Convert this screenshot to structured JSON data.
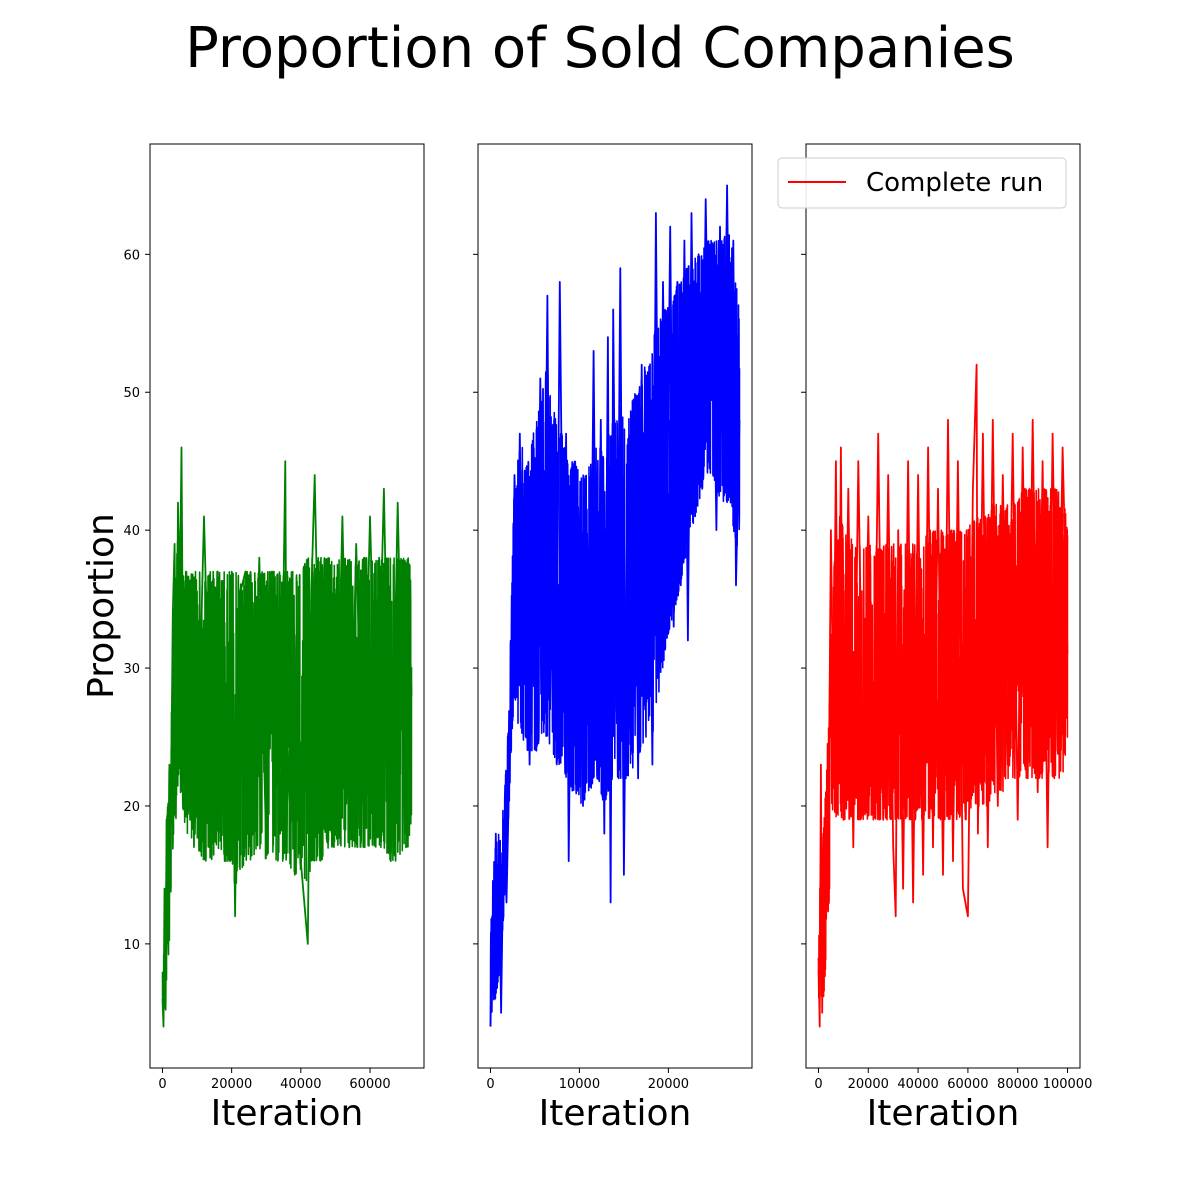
{
  "figure": {
    "title": "Proportion of Sold Companies"
  },
  "chart_data": [
    {
      "type": "line",
      "xlabel": "Iteration",
      "ylabel": "Proportion",
      "xlim": [
        -3600,
        75600
      ],
      "ylim": [
        1,
        68
      ],
      "xticks": [
        0,
        20000,
        40000,
        60000
      ],
      "xtick_labels": [
        "0",
        "20000",
        "40000",
        "60000"
      ],
      "yticks": [
        10,
        20,
        30,
        40,
        50,
        60
      ],
      "ytick_labels": [
        "10",
        "20",
        "30",
        "40",
        "50",
        "60"
      ],
      "grid": false,
      "series": [
        {
          "color": "#008000",
          "x": [
            0,
            300,
            600,
            900,
            1200,
            1500,
            2000,
            2500,
            3000,
            3500,
            4000,
            4500,
            5000,
            5500,
            6000,
            7000,
            8000,
            9000,
            10000,
            12000,
            14000,
            16000,
            18000,
            20000,
            21000,
            22000,
            24000,
            26000,
            28000,
            30000,
            32000,
            34000,
            35500,
            36000,
            38000,
            40000,
            42000,
            43000,
            44000,
            46000,
            48000,
            50000,
            52000,
            54000,
            56000,
            58000,
            60000,
            62000,
            64000,
            66000,
            68000,
            70000,
            71000,
            72000
          ],
          "y": [
            6,
            4,
            14,
            8,
            19,
            10,
            23,
            21,
            34,
            39,
            24,
            42,
            35,
            46,
            27,
            36,
            19,
            35,
            21,
            41,
            22,
            37,
            16,
            34,
            12,
            35,
            37,
            19,
            38,
            17,
            36,
            18,
            45,
            20,
            33,
            16,
            10,
            35,
            44,
            18,
            37,
            19,
            41,
            17,
            39,
            20,
            41,
            22,
            43,
            16,
            42,
            18,
            37,
            28
          ],
          "band_low": [
            4,
            4,
            5,
            5,
            7,
            8,
            10,
            14,
            17,
            19,
            19,
            20,
            20,
            21,
            18,
            18,
            18,
            17,
            17,
            16,
            16,
            17,
            16,
            16,
            14,
            15,
            16,
            16,
            17,
            16,
            16,
            16,
            16,
            16,
            15,
            15,
            14,
            16,
            16,
            16,
            17,
            17,
            17,
            17,
            17,
            17,
            17,
            17,
            17,
            16,
            16,
            17,
            17,
            19
          ],
          "band_high": [
            8,
            8,
            14,
            14,
            19,
            20,
            23,
            25,
            33,
            36,
            37,
            40,
            40,
            39,
            37,
            37,
            37,
            37,
            37,
            37,
            37,
            37,
            37,
            37,
            37,
            37,
            37,
            37,
            37,
            37,
            37,
            37,
            37,
            37,
            37,
            37,
            38,
            38,
            38,
            38,
            38,
            38,
            38,
            38,
            38,
            38,
            38,
            38,
            38,
            38,
            38,
            38,
            38,
            37
          ]
        }
      ]
    },
    {
      "type": "line",
      "xlabel": "Iteration",
      "xlim": [
        -1400,
        29400
      ],
      "ylim": [
        1,
        68
      ],
      "xticks": [
        0,
        10000,
        20000
      ],
      "xtick_labels": [
        "0",
        "10000",
        "20000"
      ],
      "yticks": [
        10,
        20,
        30,
        40,
        50,
        60
      ],
      "grid": false,
      "series": [
        {
          "color": "#0000ff",
          "x": [
            0,
            200,
            400,
            600,
            800,
            1000,
            1200,
            1500,
            1800,
            2100,
            2400,
            2700,
            3000,
            3300,
            3600,
            4000,
            4400,
            4800,
            5200,
            5600,
            6000,
            6400,
            6700,
            7000,
            7400,
            7800,
            8200,
            8500,
            8800,
            9200,
            9600,
            10000,
            10400,
            10800,
            11200,
            11600,
            12000,
            12400,
            12800,
            13200,
            13500,
            13800,
            14200,
            14600,
            15000,
            15400,
            15800,
            16200,
            16600,
            17000,
            17400,
            17800,
            18200,
            18600,
            19000,
            19400,
            19800,
            20200,
            20600,
            21000,
            21400,
            21800,
            22200,
            22600,
            23000,
            23400,
            23800,
            24200,
            24600,
            25000,
            25400,
            25800,
            26200,
            26600,
            27000,
            27300,
            27600,
            28000
          ],
          "y": [
            4,
            12,
            6,
            18,
            8,
            14,
            5,
            19,
            13,
            22,
            28,
            44,
            30,
            47,
            33,
            42,
            23,
            46,
            28,
            51,
            30,
            57,
            27,
            43,
            25,
            58,
            32,
            47,
            16,
            42,
            24,
            41,
            20,
            39,
            26,
            53,
            22,
            48,
            18,
            54,
            13,
            56,
            26,
            59,
            15,
            44,
            24,
            48,
            22,
            52,
            27,
            47,
            23,
            63,
            30,
            58,
            37,
            62,
            33,
            58,
            36,
            61,
            32,
            63,
            41,
            60,
            43,
            64,
            47,
            58,
            40,
            62,
            45,
            65,
            42,
            61,
            36,
            48
          ],
          "band_low": [
            4,
            5,
            6,
            6,
            7,
            8,
            7,
            12,
            15,
            20,
            25,
            28,
            26,
            26,
            25,
            24,
            24,
            24,
            24,
            25,
            25,
            25,
            24,
            24,
            23,
            23,
            23,
            22,
            20,
            21,
            21,
            20,
            20,
            21,
            21,
            22,
            22,
            21,
            20,
            21,
            21,
            22,
            22,
            22,
            22,
            22,
            22,
            23,
            23,
            24,
            25,
            25,
            25,
            27,
            28,
            30,
            32,
            33,
            34,
            35,
            36,
            38,
            38,
            40,
            41,
            42,
            43,
            44,
            44,
            44,
            43,
            42,
            42,
            42,
            42,
            40,
            38,
            40
          ],
          "band_high": [
            12,
            14,
            16,
            18,
            18,
            18,
            17,
            21,
            23,
            28,
            36,
            44,
            45,
            46,
            46,
            45,
            45,
            47,
            48,
            50,
            51,
            52,
            50,
            49,
            48,
            47,
            47,
            46,
            44,
            45,
            45,
            44,
            44,
            44,
            45,
            46,
            46,
            46,
            45,
            47,
            47,
            48,
            48,
            49,
            48,
            48,
            49,
            50,
            50,
            51,
            52,
            52,
            53,
            55,
            55,
            56,
            56,
            57,
            57,
            58,
            58,
            59,
            59,
            60,
            60,
            60,
            60,
            61,
            61,
            61,
            61,
            61,
            61,
            62,
            61,
            60,
            58,
            56
          ]
        }
      ]
    },
    {
      "type": "line",
      "xlabel": "Iteration",
      "xlim": [
        -5000,
        105000
      ],
      "ylim": [
        1,
        68
      ],
      "xticks": [
        0,
        20000,
        40000,
        60000,
        80000,
        100000
      ],
      "xtick_labels": [
        "0",
        "20000",
        "40000",
        "60000",
        "80000",
        "100000"
      ],
      "yticks": [
        10,
        20,
        30,
        40,
        50,
        60
      ],
      "grid": false,
      "legend": {
        "position": "top-right",
        "entries": [
          {
            "label": "Complete run",
            "color": "#ff0000"
          }
        ]
      },
      "series": [
        {
          "name": "Complete run",
          "color": "#ff0000",
          "x": [
            0,
            500,
            1000,
            1500,
            2000,
            2500,
            3000,
            4000,
            5000,
            6000,
            7000,
            8000,
            9000,
            10000,
            12000,
            14000,
            16000,
            18000,
            20000,
            22000,
            24000,
            26000,
            28000,
            30000,
            31000,
            32000,
            34000,
            36000,
            38000,
            40000,
            42000,
            44000,
            46000,
            48000,
            50000,
            52000,
            54000,
            56000,
            58000,
            60000,
            62000,
            63500,
            64000,
            66000,
            68000,
            70000,
            72000,
            74000,
            76000,
            78000,
            80000,
            82000,
            84000,
            86000,
            88000,
            90000,
            92000,
            94000,
            96000,
            98000,
            100000
          ],
          "y": [
            9,
            4,
            23,
            5,
            18,
            8,
            21,
            17,
            40,
            26,
            45,
            22,
            46,
            19,
            43,
            17,
            45,
            21,
            41,
            20,
            47,
            19,
            44,
            17,
            12,
            40,
            14,
            45,
            13,
            44,
            15,
            46,
            17,
            43,
            15,
            48,
            16,
            45,
            14,
            12,
            43,
            52,
            18,
            47,
            17,
            48,
            20,
            44,
            23,
            47,
            19,
            46,
            22,
            48,
            21,
            45,
            17,
            47,
            24,
            46,
            31
          ],
          "band_low": [
            4,
            4,
            5,
            5,
            6,
            7,
            9,
            12,
            16,
            18,
            19,
            19,
            19,
            19,
            19,
            19,
            19,
            19,
            19,
            19,
            19,
            19,
            19,
            19,
            19,
            19,
            19,
            19,
            19,
            19,
            19,
            19,
            19,
            19,
            19,
            19,
            19,
            19,
            19,
            19,
            20,
            20,
            20,
            20,
            20,
            20,
            21,
            21,
            22,
            22,
            22,
            22,
            22,
            22,
            22,
            22,
            22,
            22,
            22,
            22,
            25
          ],
          "band_high": [
            12,
            14,
            16,
            17,
            18,
            20,
            22,
            26,
            33,
            37,
            40,
            41,
            41,
            40,
            40,
            39,
            39,
            39,
            39,
            39,
            39,
            39,
            39,
            39,
            39,
            39,
            39,
            39,
            39,
            39,
            39,
            40,
            40,
            40,
            40,
            40,
            40,
            40,
            40,
            40,
            41,
            41,
            41,
            41,
            41,
            42,
            42,
            42,
            42,
            42,
            42,
            43,
            43,
            43,
            43,
            43,
            43,
            43,
            43,
            43,
            40
          ]
        }
      ]
    }
  ]
}
